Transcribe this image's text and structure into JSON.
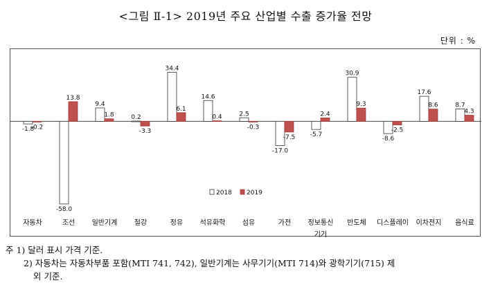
{
  "title": "<그림 Ⅱ-1> 2019년 주요 산업별 수출 증가율 전망",
  "unit": "단위 : %",
  "chart_data": {
    "type": "bar",
    "categories": [
      "자동차",
      "조선",
      "일반기계",
      "철강",
      "정유",
      "석유화학",
      "섬유",
      "가전",
      "정보통신기기",
      "반도체",
      "디스플레이",
      "이차전지",
      "음식료"
    ],
    "category_lines": [
      [
        "자동차"
      ],
      [
        "조선"
      ],
      [
        "일반기계"
      ],
      [
        "철강"
      ],
      [
        "정유"
      ],
      [
        "석유화학"
      ],
      [
        "섬유"
      ],
      [
        "가전"
      ],
      [
        "정보통신",
        "기기"
      ],
      [
        "반도체"
      ],
      [
        "디스플레이"
      ],
      [
        "이차전지"
      ],
      [
        "음식료"
      ]
    ],
    "series": [
      {
        "name": "2018",
        "values": [
          -1.8,
          -58.0,
          9.4,
          0.2,
          34.4,
          14.6,
          2.5,
          -17.0,
          -5.7,
          30.9,
          -8.6,
          17.6,
          8.7
        ]
      },
      {
        "name": "2019",
        "values": [
          -0.2,
          13.8,
          1.8,
          -3.3,
          6.1,
          0.4,
          -0.3,
          -7.5,
          2.4,
          9.3,
          -2.5,
          8.6,
          4.3
        ]
      }
    ],
    "colors": {
      "2018": "#ffffff",
      "2019": "#c0504d"
    },
    "legend_position": "inside-bottom-center",
    "ylim": [
      -60,
      40
    ],
    "grid": false
  },
  "notes": {
    "line1": "주 1) 달러 표시 가격 기준.",
    "line2": "2) 자동차는 자동차부품 포함(MTI 741, 742), 일반기계는 사무기기(MTI 714)와 광학기기(715) 제",
    "line3": "외 기준."
  }
}
